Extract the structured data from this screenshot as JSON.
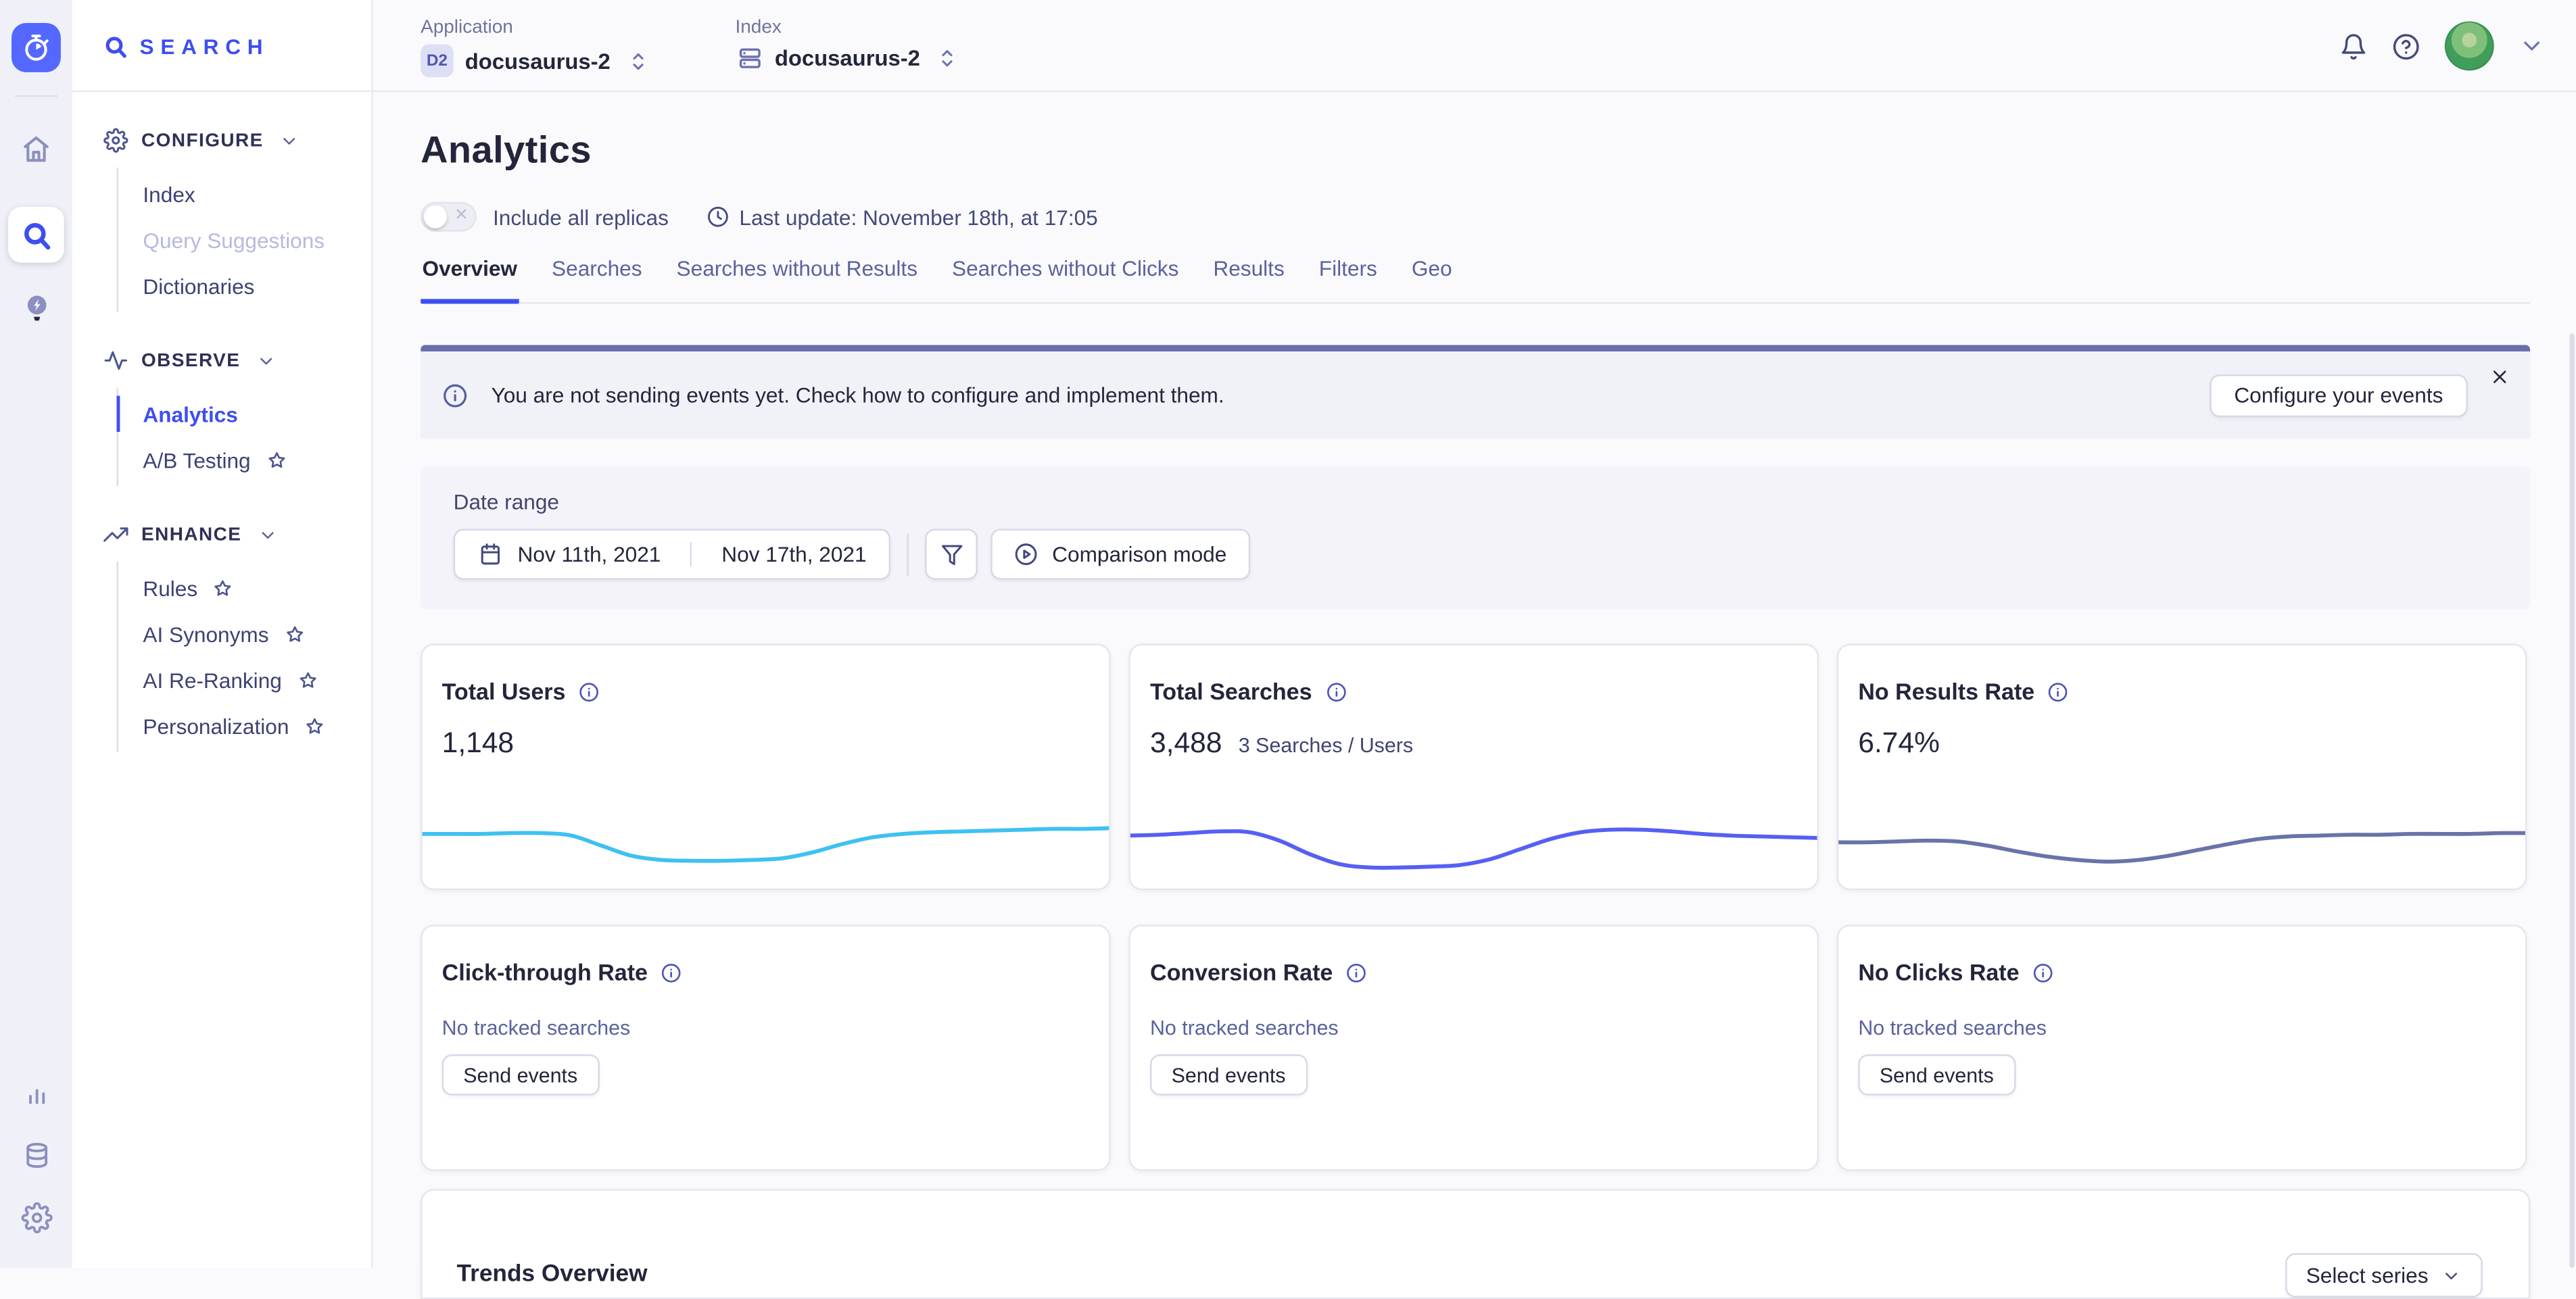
{
  "colors": {
    "accent": "#3d4ff0",
    "banner_accent": "#6770ab",
    "rail_tile": "#5468ff"
  },
  "rail": {
    "icons": [
      "app-logo-stopwatch",
      "home",
      "search-product",
      "recommend-bulb",
      "usage-bars",
      "data-database",
      "settings-gear"
    ]
  },
  "sidebar": {
    "logo_text": "SEARCH",
    "sections": [
      {
        "label": "CONFIGURE",
        "icon": "gear-icon",
        "items": [
          {
            "label": "Index"
          },
          {
            "label": "Query Suggestions"
          },
          {
            "label": "Dictionaries"
          }
        ]
      },
      {
        "label": "OBSERVE",
        "icon": "pulse-icon",
        "items": [
          {
            "label": "Analytics"
          },
          {
            "label": "A/B Testing"
          }
        ]
      },
      {
        "label": "ENHANCE",
        "icon": "trend-icon",
        "items": [
          {
            "label": "Rules"
          },
          {
            "label": "AI Synonyms"
          },
          {
            "label": "AI Re-Ranking"
          },
          {
            "label": "Personalization"
          }
        ]
      }
    ]
  },
  "topbar": {
    "application_label": "Application",
    "application_badge": "D2",
    "application_value": "docusaurus-2",
    "index_label": "Index",
    "index_value": "docusaurus-2",
    "icons": [
      "bell-icon",
      "help-icon",
      "user-avatar",
      "chevron-down-icon"
    ]
  },
  "page": {
    "title": "Analytics",
    "toggle_label": "Include all replicas",
    "last_update": "Last update: November 18th, at 17:05"
  },
  "tabs": {
    "items": [
      {
        "label": "Overview"
      },
      {
        "label": "Searches"
      },
      {
        "label": "Searches without Results"
      },
      {
        "label": "Searches without Clicks"
      },
      {
        "label": "Results"
      },
      {
        "label": "Filters"
      },
      {
        "label": "Geo"
      }
    ],
    "active": "Overview"
  },
  "banner": {
    "text": "You are not sending events yet. Check how to configure and implement them.",
    "button_label": "Configure your events"
  },
  "date_range": {
    "label": "Date range",
    "start": "Nov 11th, 2021",
    "end": "Nov 17th, 2021",
    "comparison_label": "Comparison mode"
  },
  "metric_cards": [
    {
      "title": "Total Users",
      "value": "1,148",
      "spark_color": "#3ec1f2",
      "spark": [
        52,
        52,
        52,
        53,
        53,
        50,
        38,
        26,
        21,
        20,
        20,
        21,
        23,
        30,
        40,
        48,
        52,
        54,
        55,
        56,
        57,
        58,
        58,
        59
      ]
    },
    {
      "title": "Total Searches",
      "value": "3,488",
      "subtitle": "3 Searches / Users",
      "spark_color": "#5560f2",
      "spark": [
        50,
        51,
        53,
        55,
        54,
        44,
        28,
        16,
        12,
        12,
        13,
        15,
        22,
        34,
        46,
        54,
        57,
        57,
        55,
        52,
        50,
        49,
        48,
        47
      ]
    },
    {
      "title": "No Results Rate",
      "value": "6.74%",
      "spark_color": "#6973a8",
      "spark": [
        42,
        42,
        43,
        44,
        43,
        38,
        31,
        25,
        21,
        19,
        21,
        26,
        33,
        40,
        46,
        49,
        50,
        51,
        51,
        52,
        52,
        52,
        53,
        53
      ]
    }
  ],
  "event_cards": [
    {
      "title": "Click-through Rate",
      "empty_text": "No tracked searches",
      "button_label": "Send events"
    },
    {
      "title": "Conversion Rate",
      "empty_text": "No tracked searches",
      "button_label": "Send events"
    },
    {
      "title": "No Clicks Rate",
      "empty_text": "No tracked searches",
      "button_label": "Send events"
    }
  ],
  "trends": {
    "title": "Trends Overview",
    "select_label": "Select series"
  }
}
